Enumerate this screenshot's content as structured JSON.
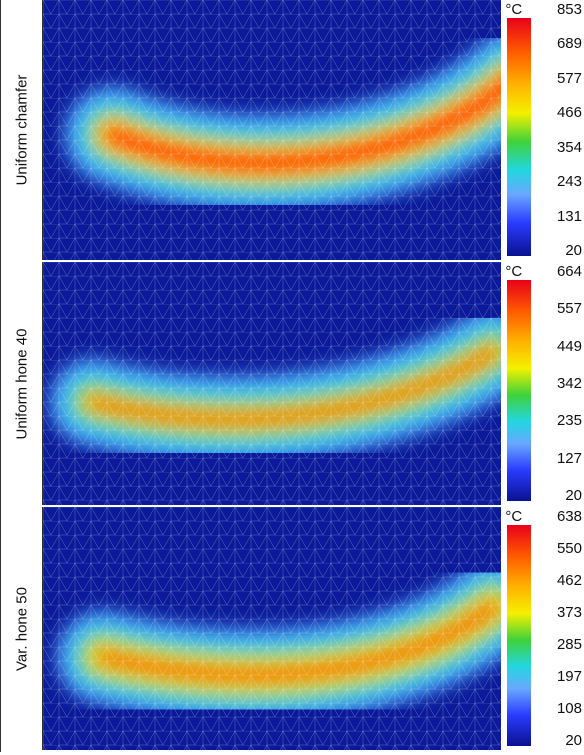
{
  "panels": [
    {
      "label": "Uniform chamfer",
      "unit": "°C",
      "scale": [
        853,
        689,
        577,
        466,
        354,
        243,
        131,
        20
      ]
    },
    {
      "label": "Uniform hone 40",
      "unit": "°C",
      "scale": [
        664,
        557,
        449,
        342,
        235,
        127,
        20
      ]
    },
    {
      "label": "Var. hone 50",
      "unit": "°C",
      "scale": [
        638,
        550,
        462,
        373,
        285,
        197,
        108,
        20
      ]
    }
  ]
}
